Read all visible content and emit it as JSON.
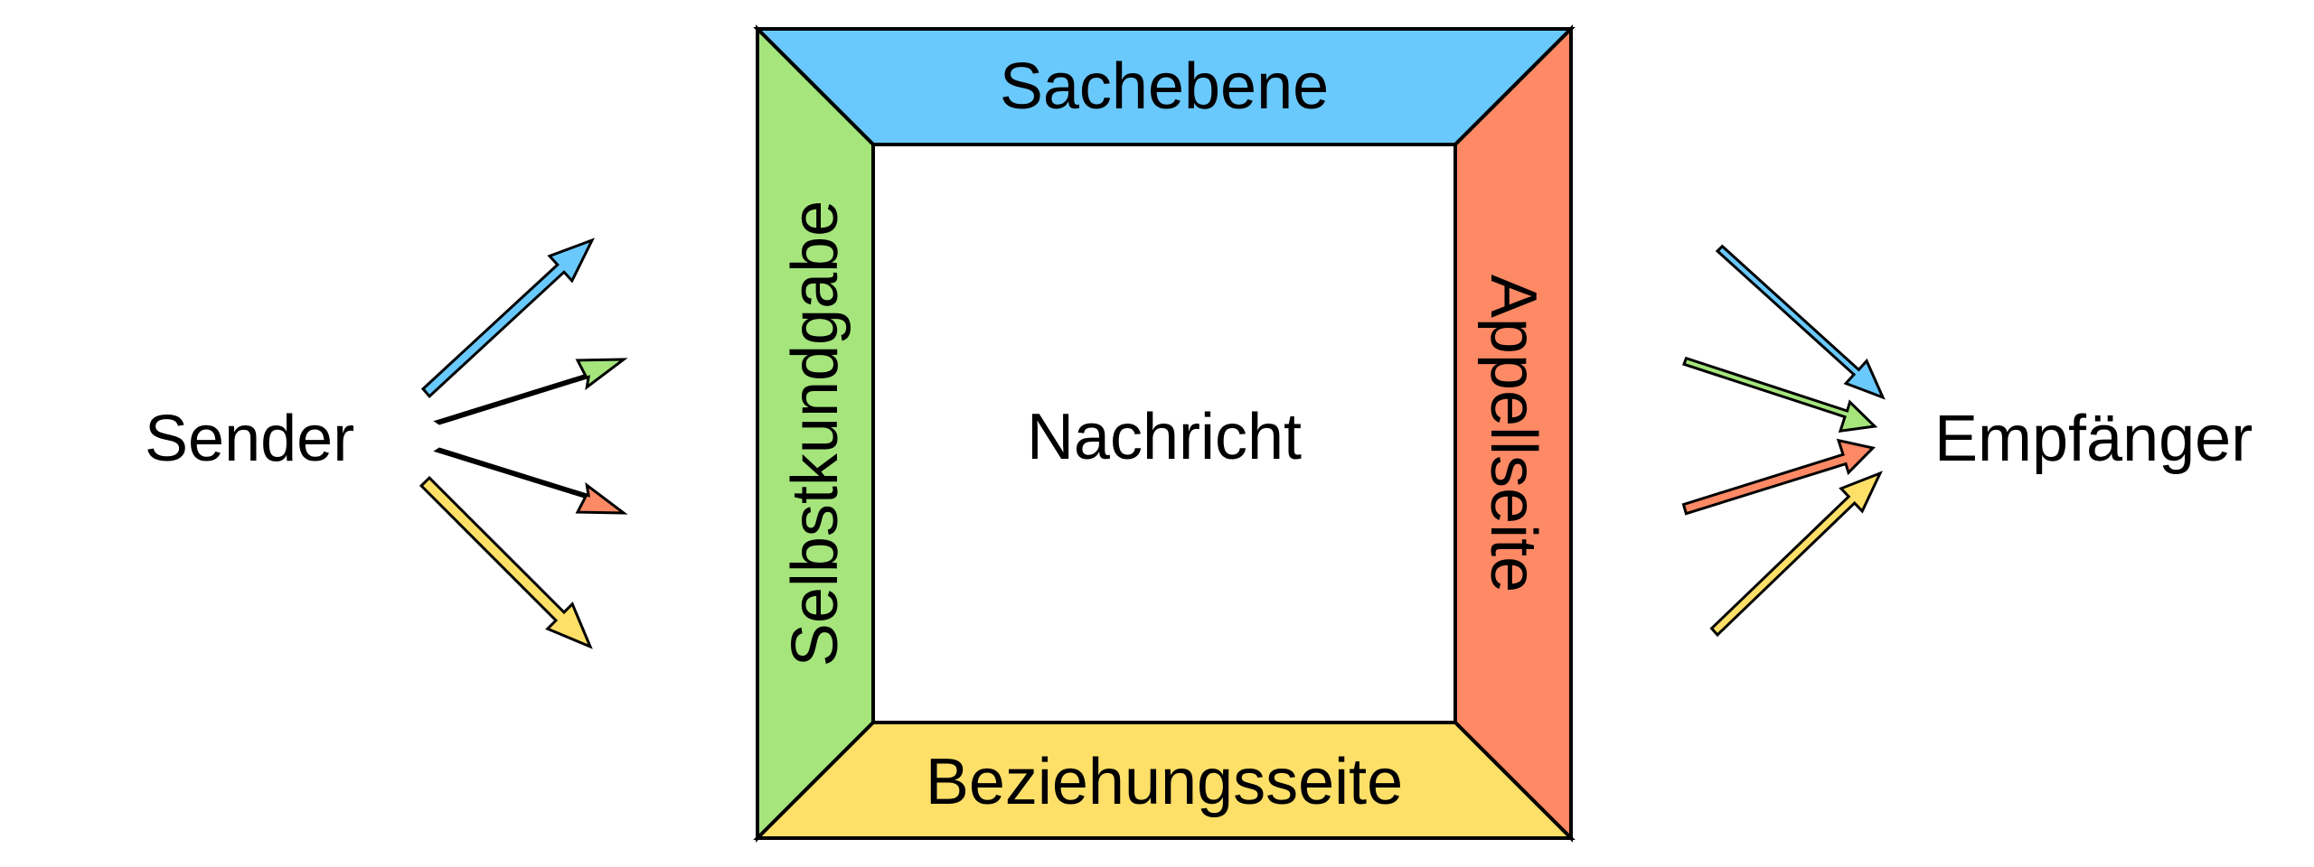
{
  "colors": {
    "top": "#6ac9fc",
    "left": "#a5e57c",
    "right": "#fe8965",
    "bottom": "#fee068",
    "center": "#ffffff",
    "stroke": "#000000"
  },
  "square": {
    "top_label": "Sachebene",
    "left_label": "Selbstkundgabe",
    "right_label": "Appellseite",
    "bottom_label": "Beziehungsseite",
    "center_label": "Nachricht"
  },
  "sender": {
    "label": "Sender",
    "arrows": [
      {
        "side": "top",
        "color": "#6ac9fc"
      },
      {
        "side": "left",
        "color": "#a5e57c"
      },
      {
        "side": "right",
        "color": "#fe8965"
      },
      {
        "side": "bottom",
        "color": "#fee068"
      }
    ]
  },
  "receiver": {
    "label": "Empfänger",
    "arrows": [
      {
        "side": "top",
        "color": "#6ac9fc"
      },
      {
        "side": "left",
        "color": "#a5e57c"
      },
      {
        "side": "right",
        "color": "#fe8965"
      },
      {
        "side": "bottom",
        "color": "#fee068"
      }
    ]
  }
}
